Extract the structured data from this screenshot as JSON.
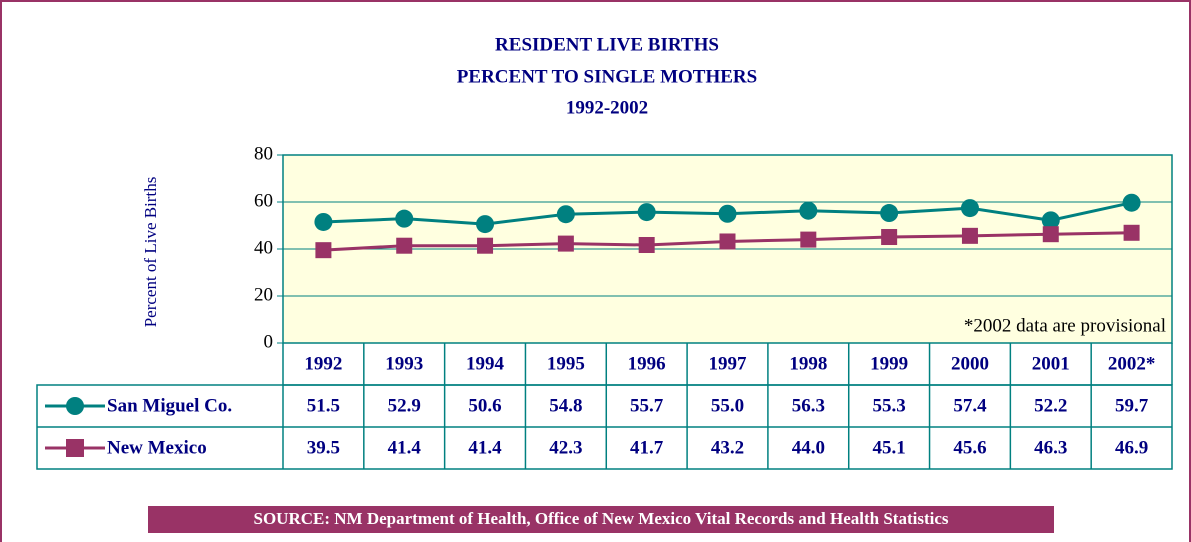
{
  "chart_data": {
    "type": "line",
    "title": [
      "RESIDENT LIVE BIRTHS",
      "PERCENT TO SINGLE MOTHERS",
      "1992-2002"
    ],
    "y_label": "Percent of Live Births",
    "note": "*2002 data are provisional",
    "source": "SOURCE: NM Department of Health, Office of New Mexico Vital Records and Health Statistics",
    "categories": [
      "1992",
      "1993",
      "1994",
      "1995",
      "1996",
      "1997",
      "1998",
      "1999",
      "2000",
      "2001",
      "2002*"
    ],
    "series": [
      {
        "name": "San Miguel Co.",
        "color": "#008080",
        "marker": "circle",
        "values": [
          51.5,
          52.9,
          50.6,
          54.8,
          55.7,
          55.0,
          56.3,
          55.3,
          57.4,
          52.2,
          59.7
        ],
        "value_labels": [
          "51.5",
          "52.9",
          "50.6",
          "54.8",
          "55.7",
          "55.0",
          "56.3",
          "55.3",
          "57.4",
          "52.2",
          "59.7"
        ]
      },
      {
        "name": "New Mexico",
        "color": "#993366",
        "marker": "square",
        "values": [
          39.5,
          41.4,
          41.4,
          42.3,
          41.7,
          43.2,
          44.0,
          45.1,
          45.6,
          46.3,
          46.9
        ],
        "value_labels": [
          "39.5",
          "41.4",
          "41.4",
          "42.3",
          "41.7",
          "43.2",
          "44.0",
          "45.1",
          "45.6",
          "46.3",
          "46.9"
        ]
      }
    ],
    "ylim": [
      0,
      80
    ],
    "yticks": [
      0,
      20,
      40,
      60,
      80
    ],
    "grid": true,
    "plot_color": "#ffffe0"
  }
}
